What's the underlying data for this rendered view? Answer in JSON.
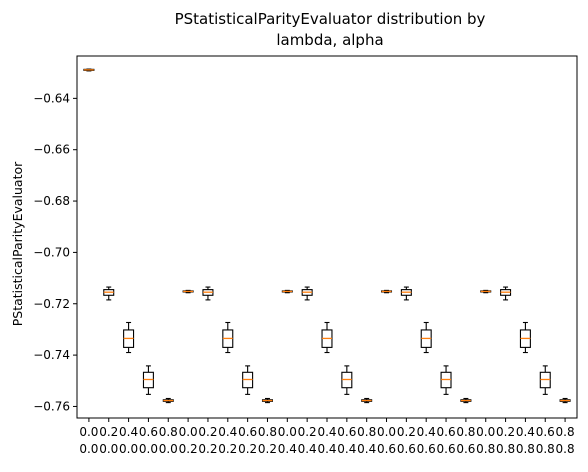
{
  "chart_data": {
    "type": "box",
    "title_lines": [
      "PStatisticalParityEvaluator distribution by",
      "lambda, alpha"
    ],
    "xlabel": "",
    "ylabel": "PStatisticalParityEvaluator",
    "ylim": [
      -0.7645,
      -0.6235
    ],
    "yticks": [
      -0.76,
      -0.74,
      -0.72,
      -0.7,
      -0.68,
      -0.66,
      -0.64
    ],
    "ytick_labels": [
      "−0.76",
      "−0.74",
      "−0.72",
      "−0.70",
      "−0.68",
      "−0.66",
      "−0.64"
    ],
    "grid": false,
    "median_color": "#ff7f0e",
    "box_color": "#000000",
    "categories": [
      [
        "0.0",
        "0.0"
      ],
      [
        "0.2",
        "0.0"
      ],
      [
        "0.4",
        "0.0"
      ],
      [
        "0.6",
        "0.0"
      ],
      [
        "0.8",
        "0.0"
      ],
      [
        "0.0",
        "0.2"
      ],
      [
        "0.2",
        "0.2"
      ],
      [
        "0.4",
        "0.2"
      ],
      [
        "0.6",
        "0.2"
      ],
      [
        "0.8",
        "0.2"
      ],
      [
        "0.0",
        "0.4"
      ],
      [
        "0.2",
        "0.4"
      ],
      [
        "0.4",
        "0.4"
      ],
      [
        "0.6",
        "0.4"
      ],
      [
        "0.8",
        "0.4"
      ],
      [
        "0.0",
        "0.6"
      ],
      [
        "0.2",
        "0.6"
      ],
      [
        "0.4",
        "0.6"
      ],
      [
        "0.6",
        "0.6"
      ],
      [
        "0.8",
        "0.6"
      ],
      [
        "0.0",
        "0.8"
      ],
      [
        "0.2",
        "0.8"
      ],
      [
        "0.4",
        "0.8"
      ],
      [
        "0.6",
        "0.8"
      ],
      [
        "0.8",
        "0.8"
      ]
    ],
    "boxes": [
      {
        "whislo": -0.6293,
        "q1": -0.6291,
        "med": -0.6289,
        "q3": -0.6287,
        "whishi": -0.6286
      },
      {
        "whislo": -0.7185,
        "q1": -0.7167,
        "med": -0.7155,
        "q3": -0.7145,
        "whishi": -0.7135
      },
      {
        "whislo": -0.739,
        "q1": -0.737,
        "med": -0.7335,
        "q3": -0.7302,
        "whishi": -0.7273
      },
      {
        "whislo": -0.7553,
        "q1": -0.7527,
        "med": -0.7495,
        "q3": -0.7467,
        "whishi": -0.7442
      },
      {
        "whislo": -0.7585,
        "q1": -0.758,
        "med": -0.7577,
        "q3": -0.7574,
        "whishi": -0.7569
      },
      {
        "whislo": -0.7157,
        "q1": -0.7154,
        "med": -0.7152,
        "q3": -0.715,
        "whishi": -0.7148
      },
      {
        "whislo": -0.7185,
        "q1": -0.7167,
        "med": -0.7155,
        "q3": -0.7145,
        "whishi": -0.7135
      },
      {
        "whislo": -0.739,
        "q1": -0.737,
        "med": -0.7335,
        "q3": -0.7302,
        "whishi": -0.7273
      },
      {
        "whislo": -0.7553,
        "q1": -0.7527,
        "med": -0.7495,
        "q3": -0.7467,
        "whishi": -0.7442
      },
      {
        "whislo": -0.7585,
        "q1": -0.758,
        "med": -0.7577,
        "q3": -0.7574,
        "whishi": -0.7569
      },
      {
        "whislo": -0.7157,
        "q1": -0.7154,
        "med": -0.7152,
        "q3": -0.715,
        "whishi": -0.7148
      },
      {
        "whislo": -0.7185,
        "q1": -0.7167,
        "med": -0.7155,
        "q3": -0.7145,
        "whishi": -0.7135
      },
      {
        "whislo": -0.739,
        "q1": -0.737,
        "med": -0.7335,
        "q3": -0.7302,
        "whishi": -0.7273
      },
      {
        "whislo": -0.7553,
        "q1": -0.7527,
        "med": -0.7495,
        "q3": -0.7467,
        "whishi": -0.7442
      },
      {
        "whislo": -0.7585,
        "q1": -0.758,
        "med": -0.7577,
        "q3": -0.7574,
        "whishi": -0.7569
      },
      {
        "whislo": -0.7157,
        "q1": -0.7154,
        "med": -0.7152,
        "q3": -0.715,
        "whishi": -0.7148
      },
      {
        "whislo": -0.7185,
        "q1": -0.7167,
        "med": -0.7155,
        "q3": -0.7145,
        "whishi": -0.7135
      },
      {
        "whislo": -0.739,
        "q1": -0.737,
        "med": -0.7335,
        "q3": -0.7302,
        "whishi": -0.7273
      },
      {
        "whislo": -0.7553,
        "q1": -0.7527,
        "med": -0.7495,
        "q3": -0.7467,
        "whishi": -0.7442
      },
      {
        "whislo": -0.7585,
        "q1": -0.758,
        "med": -0.7577,
        "q3": -0.7574,
        "whishi": -0.7569
      },
      {
        "whislo": -0.7157,
        "q1": -0.7154,
        "med": -0.7152,
        "q3": -0.715,
        "whishi": -0.7148
      },
      {
        "whislo": -0.7185,
        "q1": -0.7167,
        "med": -0.7155,
        "q3": -0.7145,
        "whishi": -0.7135
      },
      {
        "whislo": -0.739,
        "q1": -0.737,
        "med": -0.7335,
        "q3": -0.7302,
        "whishi": -0.7273
      },
      {
        "whislo": -0.7553,
        "q1": -0.7527,
        "med": -0.7495,
        "q3": -0.7467,
        "whishi": -0.7442
      },
      {
        "whislo": -0.7585,
        "q1": -0.758,
        "med": -0.7577,
        "q3": -0.7574,
        "whishi": -0.7569
      }
    ]
  }
}
